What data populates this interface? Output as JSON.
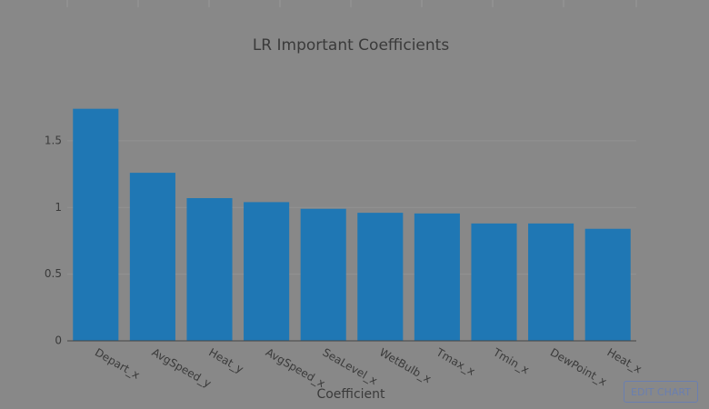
{
  "chart_data": {
    "type": "bar",
    "title": "LR Important Coefficients",
    "x_label": "Coefficient",
    "categories": [
      "Depart_x",
      "AvgSpeed_y",
      "Heat_y",
      "AvgSpeed_x",
      "SeaLevel_x",
      "WetBulb_x",
      "Tmax_x",
      "Tmin_x",
      "DewPoint_x",
      "Heat_x"
    ],
    "values": [
      1.74,
      1.26,
      1.07,
      1.04,
      0.99,
      0.96,
      0.955,
      0.88,
      0.88,
      0.84
    ],
    "color": "#1f77b4",
    "ylim": [
      0,
      1.84
    ],
    "yticks": [
      0,
      0.5,
      1,
      1.5
    ],
    "grid": true
  },
  "edit_button": "EDIT CHART"
}
